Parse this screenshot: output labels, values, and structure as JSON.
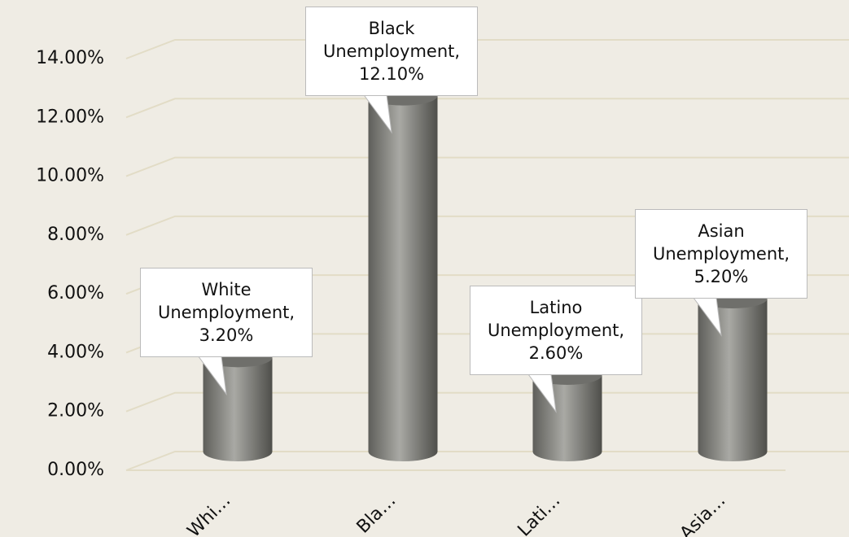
{
  "chart_data": {
    "type": "bar3d",
    "categories": [
      "Whi…",
      "Bla…",
      "Lati…",
      "Asia…"
    ],
    "values": [
      3.2,
      12.1,
      2.6,
      5.2
    ],
    "value_labels": [
      "White Unemployment, 3.20%",
      "Black Unemployment, 12.10%",
      "Latino Unemployment, 2.60%",
      "Asian Unemployment, 5.20%"
    ],
    "color": "#8c8c88",
    "ylim": [
      0,
      14
    ],
    "yticks": [
      {
        "value": 0,
        "label": "0.00%"
      },
      {
        "value": 2,
        "label": "2.00%"
      },
      {
        "value": 4,
        "label": "4.00%"
      },
      {
        "value": 6,
        "label": "6.00%"
      },
      {
        "value": 8,
        "label": "8.00%"
      },
      {
        "value": 10,
        "label": "10.00%"
      },
      {
        "value": 12,
        "label": "12.00%"
      },
      {
        "value": 14,
        "label": "14.00%"
      }
    ],
    "grid": true
  }
}
